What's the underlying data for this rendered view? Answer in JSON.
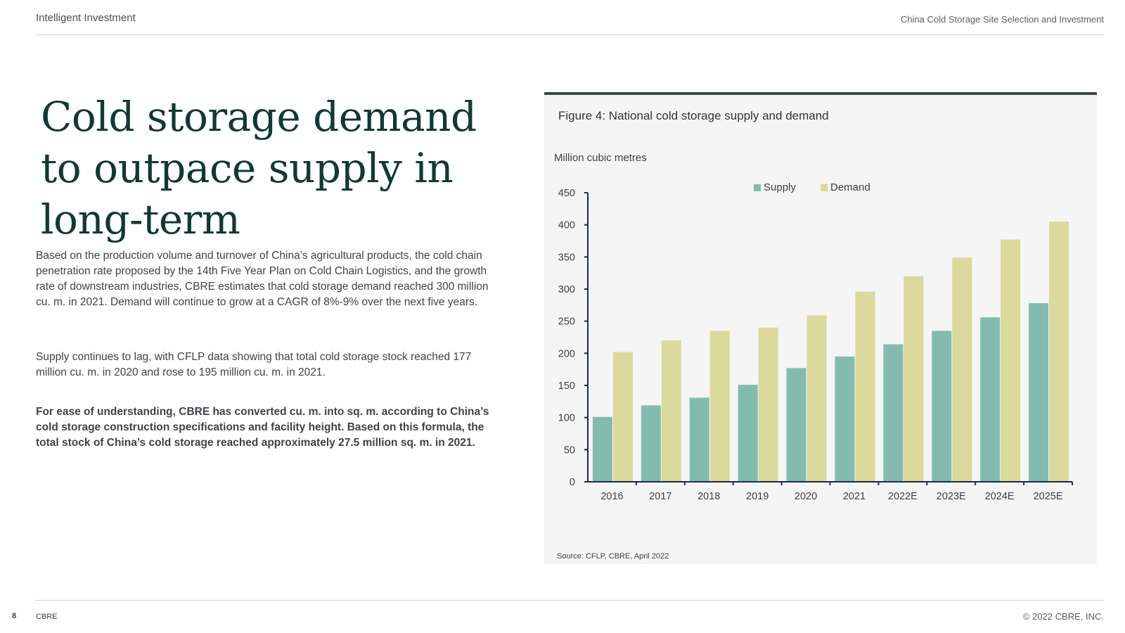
{
  "header": {
    "left": "Intelligent Investment",
    "right": "China Cold Storage Site Selection and Investment"
  },
  "title": "Cold storage demand to outpace supply in long-term",
  "paragraphs": [
    "Based on the production volume and turnover of China’s agricultural products, the cold chain penetration rate proposed by the 14th Five Year Plan on Cold Chain Logistics, and the growth rate of downstream industries, CBRE estimates that cold storage demand reached 300 million cu. m. in 2021. Demand will continue to grow at a CAGR of 8%-9% over the next five years.",
    "Supply continues to lag, with CFLP data showing that total cold storage stock reached 177 million cu. m. in 2020 and rose to 195 million cu. m. in 2021.",
    "For ease of understanding, CBRE has converted cu. m. into sq. m. according to China’s cold storage construction specifications and facility height. Based on this formula, the total stock of China’s cold storage reached approximately 27.5 million sq. m. in 2021."
  ],
  "figure": {
    "title": "Figure 4: National cold storage supply and demand",
    "source": "Source: CFLP, CBRE, April 2022"
  },
  "chart_data": {
    "type": "bar",
    "title": "Figure 4: National cold storage supply and demand",
    "ylabel": "Million cubic metres",
    "xlabel": "",
    "categories": [
      "2016",
      "2017",
      "2018",
      "2019",
      "2020",
      "2021",
      "2022E",
      "2023E",
      "2024E",
      "2025E"
    ],
    "series": [
      {
        "name": "Supply",
        "color": "#83bcae",
        "values": [
          101,
          119,
          131,
          151,
          177,
          195,
          214,
          235,
          256,
          278
        ]
      },
      {
        "name": "Demand",
        "color": "#dbd99b",
        "values": [
          202,
          220,
          235,
          240,
          259,
          296,
          320,
          349,
          377,
          405
        ]
      }
    ],
    "ylim": [
      0,
      450
    ],
    "yticks": [
      0,
      50,
      100,
      150,
      200,
      250,
      300,
      350,
      400,
      450
    ],
    "legend_position": "top-center",
    "grid": false,
    "axis_color": "#1e2b44"
  },
  "footer": {
    "page_number": "8",
    "brand": "CBRE",
    "copyright": "© 2022 CBRE, INC."
  }
}
